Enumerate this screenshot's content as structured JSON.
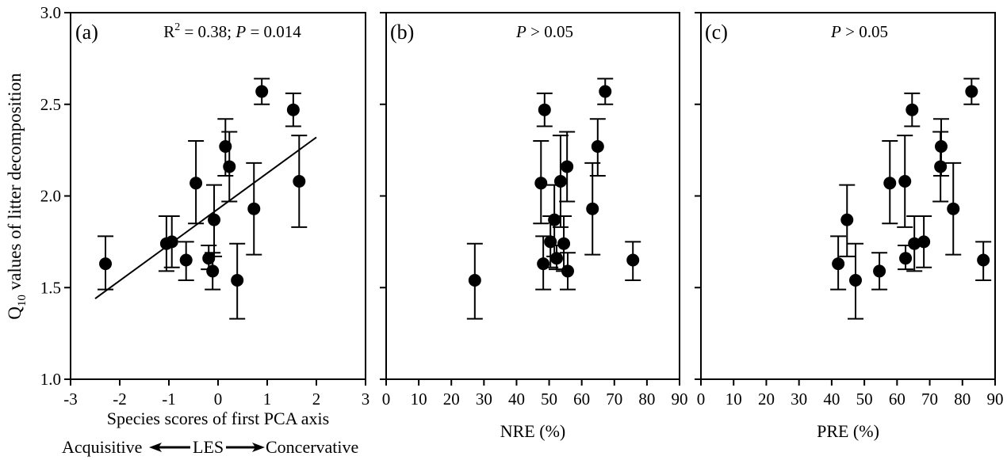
{
  "figure": {
    "ylabel_main": "Q",
    "ylabel_sub": "10",
    "ylabel_rest": " values of litter decomposition",
    "les_annotation": {
      "left": "Acquisitive",
      "middle": "LES",
      "right": "Concervative"
    }
  },
  "chart_data": [
    {
      "type": "scatter",
      "panel_label": "(a)",
      "stat_text": {
        "r": "R",
        "sup": "2",
        "mid": " = 0.38; ",
        "p": "P",
        "end": " = 0.014"
      },
      "xlabel": "Species scores of first PCA axis",
      "ylabel": "Q10 values of litter decomposition",
      "xlim": [
        -3,
        3
      ],
      "ylim": [
        1.0,
        3.0
      ],
      "xticks": [
        -3,
        -2,
        -1,
        0,
        1,
        2,
        3
      ],
      "yticks": [
        1.0,
        1.5,
        2.0,
        2.5,
        3.0
      ],
      "ytick_labels": [
        "1.0",
        "1.5",
        "2.0",
        "2.5",
        "3.0"
      ],
      "grid": false,
      "fit_line": {
        "x": [
          -2.5,
          2.0
        ],
        "y": [
          1.44,
          2.32
        ]
      },
      "points": [
        {
          "x": -2.29,
          "y": 1.63,
          "ylo": 1.49,
          "yhi": 1.78
        },
        {
          "x": -1.05,
          "y": 1.74,
          "ylo": 1.59,
          "yhi": 1.89
        },
        {
          "x": -0.94,
          "y": 1.75,
          "ylo": 1.61,
          "yhi": 1.89
        },
        {
          "x": -0.65,
          "y": 1.65,
          "ylo": 1.54,
          "yhi": 1.75
        },
        {
          "x": -0.45,
          "y": 2.07,
          "ylo": 1.85,
          "yhi": 2.3
        },
        {
          "x": -0.19,
          "y": 1.66,
          "ylo": 1.6,
          "yhi": 1.73
        },
        {
          "x": -0.11,
          "y": 1.59,
          "ylo": 1.49,
          "yhi": 1.69
        },
        {
          "x": -0.08,
          "y": 1.87,
          "ylo": 1.67,
          "yhi": 2.06
        },
        {
          "x": 0.15,
          "y": 2.27,
          "ylo": 2.11,
          "yhi": 2.42
        },
        {
          "x": 0.23,
          "y": 2.16,
          "ylo": 1.97,
          "yhi": 2.35
        },
        {
          "x": 0.39,
          "y": 1.54,
          "ylo": 1.33,
          "yhi": 1.74
        },
        {
          "x": 0.73,
          "y": 1.93,
          "ylo": 1.68,
          "yhi": 2.18
        },
        {
          "x": 0.89,
          "y": 2.57,
          "ylo": 2.5,
          "yhi": 2.64
        },
        {
          "x": 1.53,
          "y": 2.47,
          "ylo": 2.38,
          "yhi": 2.56
        },
        {
          "x": 1.65,
          "y": 2.08,
          "ylo": 1.83,
          "yhi": 2.33
        }
      ]
    },
    {
      "type": "scatter",
      "panel_label": "(b)",
      "stat_text": {
        "p": "P",
        "end": " > 0.05"
      },
      "xlabel": "NRE (%)",
      "xlim": [
        0,
        90
      ],
      "ylim": [
        1.0,
        3.0
      ],
      "xticks": [
        0,
        10,
        20,
        30,
        40,
        50,
        60,
        70,
        80,
        90
      ],
      "yticks": [
        1.0,
        1.5,
        2.0,
        2.5,
        3.0
      ],
      "grid": false,
      "points": [
        {
          "x": 27.2,
          "y": 1.54,
          "ylo": 1.33,
          "yhi": 1.74
        },
        {
          "x": 47.5,
          "y": 2.07,
          "ylo": 1.85,
          "yhi": 2.3
        },
        {
          "x": 48.2,
          "y": 1.63,
          "ylo": 1.49,
          "yhi": 1.78
        },
        {
          "x": 48.6,
          "y": 2.47,
          "ylo": 2.38,
          "yhi": 2.56
        },
        {
          "x": 50.4,
          "y": 1.75,
          "ylo": 1.61,
          "yhi": 1.89
        },
        {
          "x": 51.6,
          "y": 1.87,
          "ylo": 1.67,
          "yhi": 2.06
        },
        {
          "x": 52.3,
          "y": 1.66,
          "ylo": 1.6,
          "yhi": 1.73
        },
        {
          "x": 53.5,
          "y": 2.08,
          "ylo": 1.83,
          "yhi": 2.33
        },
        {
          "x": 54.5,
          "y": 1.74,
          "ylo": 1.59,
          "yhi": 1.89
        },
        {
          "x": 55.5,
          "y": 2.16,
          "ylo": 1.97,
          "yhi": 2.35
        },
        {
          "x": 55.7,
          "y": 1.59,
          "ylo": 1.49,
          "yhi": 1.69
        },
        {
          "x": 63.3,
          "y": 1.93,
          "ylo": 1.68,
          "yhi": 2.18
        },
        {
          "x": 64.9,
          "y": 2.27,
          "ylo": 2.11,
          "yhi": 2.42
        },
        {
          "x": 67.2,
          "y": 2.57,
          "ylo": 2.5,
          "yhi": 2.64
        },
        {
          "x": 75.7,
          "y": 1.65,
          "ylo": 1.54,
          "yhi": 1.75
        }
      ]
    },
    {
      "type": "scatter",
      "panel_label": "(c)",
      "stat_text": {
        "p": "P",
        "end": " > 0.05"
      },
      "xlabel": "PRE (%)",
      "xlim": [
        0,
        90
      ],
      "ylim": [
        1.0,
        3.0
      ],
      "xticks": [
        0,
        10,
        20,
        30,
        40,
        50,
        60,
        70,
        80,
        90
      ],
      "yticks": [
        1.0,
        1.5,
        2.0,
        2.5,
        3.0
      ],
      "grid": false,
      "points": [
        {
          "x": 42.0,
          "y": 1.63,
          "ylo": 1.49,
          "yhi": 1.78
        },
        {
          "x": 44.7,
          "y": 1.87,
          "ylo": 1.67,
          "yhi": 2.06
        },
        {
          "x": 47.3,
          "y": 1.54,
          "ylo": 1.33,
          "yhi": 1.74
        },
        {
          "x": 54.6,
          "y": 1.59,
          "ylo": 1.49,
          "yhi": 1.69
        },
        {
          "x": 57.8,
          "y": 2.07,
          "ylo": 1.85,
          "yhi": 2.3
        },
        {
          "x": 62.4,
          "y": 2.08,
          "ylo": 1.83,
          "yhi": 2.33
        },
        {
          "x": 62.6,
          "y": 1.66,
          "ylo": 1.6,
          "yhi": 1.73
        },
        {
          "x": 64.6,
          "y": 2.47,
          "ylo": 2.38,
          "yhi": 2.56
        },
        {
          "x": 65.3,
          "y": 1.74,
          "ylo": 1.59,
          "yhi": 1.89
        },
        {
          "x": 68.2,
          "y": 1.75,
          "ylo": 1.61,
          "yhi": 1.89
        },
        {
          "x": 73.3,
          "y": 2.16,
          "ylo": 1.97,
          "yhi": 2.35
        },
        {
          "x": 73.5,
          "y": 2.27,
          "ylo": 2.11,
          "yhi": 2.42
        },
        {
          "x": 77.2,
          "y": 1.93,
          "ylo": 1.68,
          "yhi": 2.18
        },
        {
          "x": 82.8,
          "y": 2.57,
          "ylo": 2.5,
          "yhi": 2.64
        },
        {
          "x": 86.4,
          "y": 1.65,
          "ylo": 1.54,
          "yhi": 1.75
        }
      ]
    }
  ]
}
